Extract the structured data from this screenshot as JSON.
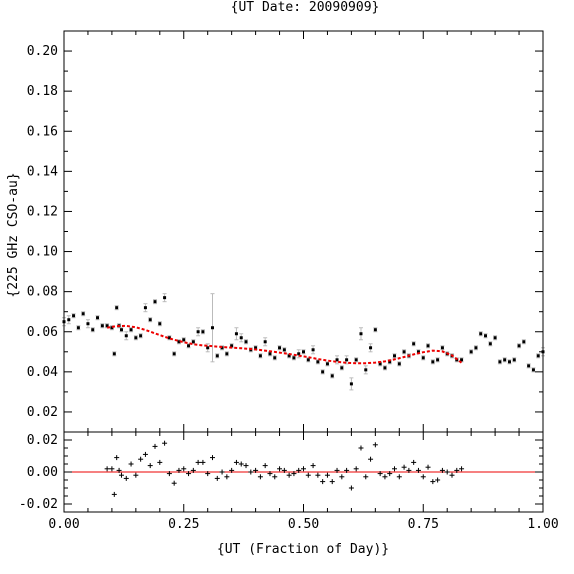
{
  "chart_data": [
    {
      "type": "scatter",
      "title": "{UT Date: 20090909}",
      "ylabel": "{225 GHz CSO-au}",
      "xlim": [
        0.0,
        1.0
      ],
      "ylim": [
        0.01,
        0.21
      ],
      "yticks": [
        "0.02",
        "0.04",
        "0.06",
        "0.08",
        "0.10",
        "0.12",
        "0.14",
        "0.16",
        "0.18",
        "0.20"
      ],
      "grid": false,
      "colors": {
        "points": "#000000",
        "errorbars": "#bbbbbb",
        "fit": "#ee0000"
      },
      "series": [
        {
          "kind": "points-with-errorbars",
          "x": [
            0.0,
            0.01,
            0.02,
            0.03,
            0.04,
            0.05,
            0.06,
            0.07,
            0.08,
            0.09,
            0.1,
            0.105,
            0.11,
            0.115,
            0.12,
            0.13,
            0.14,
            0.15,
            0.16,
            0.17,
            0.18,
            0.19,
            0.2,
            0.21,
            0.22,
            0.23,
            0.24,
            0.25,
            0.26,
            0.27,
            0.28,
            0.29,
            0.3,
            0.31,
            0.32,
            0.33,
            0.34,
            0.35,
            0.36,
            0.37,
            0.38,
            0.39,
            0.4,
            0.41,
            0.42,
            0.43,
            0.44,
            0.45,
            0.46,
            0.47,
            0.48,
            0.49,
            0.5,
            0.51,
            0.52,
            0.53,
            0.54,
            0.55,
            0.56,
            0.57,
            0.58,
            0.59,
            0.6,
            0.61,
            0.62,
            0.63,
            0.64,
            0.65,
            0.66,
            0.67,
            0.68,
            0.69,
            0.7,
            0.71,
            0.72,
            0.73,
            0.74,
            0.75,
            0.76,
            0.77,
            0.78,
            0.79,
            0.8,
            0.81,
            0.82,
            0.83,
            0.85,
            0.86,
            0.87,
            0.88,
            0.89,
            0.9,
            0.91,
            0.92,
            0.93,
            0.94,
            0.95,
            0.96,
            0.97,
            0.98,
            0.99,
            1.0
          ],
          "y": [
            0.065,
            0.066,
            0.068,
            0.062,
            0.069,
            0.064,
            0.061,
            0.067,
            0.063,
            0.063,
            0.062,
            0.049,
            0.072,
            0.063,
            0.061,
            0.058,
            0.061,
            0.057,
            0.058,
            0.072,
            0.066,
            0.075,
            0.064,
            0.077,
            0.057,
            0.049,
            0.055,
            0.056,
            0.053,
            0.055,
            0.06,
            0.06,
            0.052,
            0.062,
            0.048,
            0.052,
            0.049,
            0.053,
            0.059,
            0.057,
            0.055,
            0.051,
            0.052,
            0.048,
            0.055,
            0.049,
            0.047,
            0.052,
            0.051,
            0.048,
            0.047,
            0.049,
            0.05,
            0.046,
            0.051,
            0.045,
            0.04,
            0.044,
            0.038,
            0.046,
            0.042,
            0.046,
            0.034,
            0.046,
            0.059,
            0.041,
            0.052,
            0.061,
            0.044,
            0.042,
            0.045,
            0.048,
            0.044,
            0.05,
            0.048,
            0.054,
            0.05,
            0.047,
            0.053,
            0.045,
            0.046,
            0.052,
            0.049,
            0.048,
            0.046,
            0.046,
            0.05,
            0.052,
            0.059,
            0.058,
            0.054,
            0.057,
            0.045,
            0.046,
            0.045,
            0.046,
            0.053,
            0.055,
            0.043,
            0.041,
            0.048,
            0.05
          ],
          "yerr": [
            0.002,
            0.002,
            0.001,
            0.001,
            0.001,
            0.002,
            0.001,
            0.001,
            0.001,
            0.001,
            0.001,
            0.001,
            0.001,
            0.001,
            0.001,
            0.002,
            0.001,
            0.001,
            0.001,
            0.002,
            0.001,
            0.001,
            0.001,
            0.002,
            0.001,
            0.001,
            0.001,
            0.001,
            0.001,
            0.001,
            0.002,
            0.001,
            0.002,
            0.017,
            0.001,
            0.001,
            0.001,
            0.001,
            0.003,
            0.002,
            0.001,
            0.001,
            0.001,
            0.001,
            0.002,
            0.001,
            0.001,
            0.001,
            0.001,
            0.001,
            0.001,
            0.002,
            0.001,
            0.001,
            0.002,
            0.001,
            0.001,
            0.001,
            0.001,
            0.002,
            0.001,
            0.002,
            0.003,
            0.001,
            0.003,
            0.002,
            0.002,
            0.001,
            0.001,
            0.001,
            0.001,
            0.001,
            0.001,
            0.001,
            0.001,
            0.001,
            0.001,
            0.001,
            0.001,
            0.001,
            0.001,
            0.001,
            0.001,
            0.001,
            0.001,
            0.001,
            0.001,
            0.001,
            0.001,
            0.001,
            0.001,
            0.001,
            0.001,
            0.001,
            0.001,
            0.001,
            0.001,
            0.001,
            0.001,
            0.001,
            0.001,
            0.002
          ]
        },
        {
          "kind": "fit-curve",
          "x": [
            0.09,
            0.11,
            0.13,
            0.15,
            0.17,
            0.19,
            0.21,
            0.23,
            0.25,
            0.27,
            0.29,
            0.31,
            0.33,
            0.35,
            0.37,
            0.39,
            0.41,
            0.43,
            0.45,
            0.47,
            0.49,
            0.51,
            0.53,
            0.55,
            0.57,
            0.59,
            0.61,
            0.63,
            0.65,
            0.67,
            0.69,
            0.71,
            0.73,
            0.75,
            0.77,
            0.79,
            0.81,
            0.83
          ],
          "y": [
            0.062,
            0.0628,
            0.0629,
            0.0622,
            0.0609,
            0.0592,
            0.0575,
            0.056,
            0.0548,
            0.0538,
            0.0532,
            0.0528,
            0.0524,
            0.0521,
            0.0518,
            0.0514,
            0.0509,
            0.0503,
            0.0496,
            0.0489,
            0.0481,
            0.0473,
            0.0464,
            0.0456,
            0.045,
            0.0445,
            0.0443,
            0.0443,
            0.0446,
            0.0452,
            0.0462,
            0.0474,
            0.0487,
            0.0498,
            0.0506,
            0.0502,
            0.0482,
            0.0445
          ]
        }
      ]
    },
    {
      "type": "scatter",
      "xlabel": "{UT (Fraction of Day)}",
      "xlim": [
        0.0,
        1.0
      ],
      "ylim": [
        -0.025,
        0.025
      ],
      "xticks": [
        "0.00",
        "0.25",
        "0.50",
        "0.75",
        "1.00"
      ],
      "yticks": [
        "-0.02",
        "0.00",
        "0.02"
      ],
      "grid": false,
      "reference_line": 0.0,
      "series": [
        {
          "kind": "residuals",
          "x": [
            0.09,
            0.1,
            0.105,
            0.11,
            0.115,
            0.12,
            0.13,
            0.14,
            0.15,
            0.16,
            0.17,
            0.18,
            0.19,
            0.2,
            0.21,
            0.22,
            0.23,
            0.24,
            0.25,
            0.26,
            0.27,
            0.28,
            0.29,
            0.3,
            0.31,
            0.32,
            0.33,
            0.34,
            0.35,
            0.36,
            0.37,
            0.38,
            0.39,
            0.4,
            0.41,
            0.42,
            0.43,
            0.44,
            0.45,
            0.46,
            0.47,
            0.48,
            0.49,
            0.5,
            0.51,
            0.52,
            0.53,
            0.54,
            0.55,
            0.56,
            0.57,
            0.58,
            0.59,
            0.6,
            0.61,
            0.62,
            0.63,
            0.64,
            0.65,
            0.66,
            0.67,
            0.68,
            0.69,
            0.7,
            0.71,
            0.72,
            0.73,
            0.74,
            0.75,
            0.76,
            0.77,
            0.78,
            0.79,
            0.8,
            0.81,
            0.82,
            0.83
          ],
          "y": [
            0.002,
            0.002,
            -0.014,
            0.009,
            0.001,
            -0.002,
            -0.004,
            0.005,
            -0.002,
            0.008,
            0.011,
            0.004,
            0.016,
            0.006,
            0.018,
            -0.001,
            -0.007,
            0.001,
            0.002,
            -0.001,
            0.001,
            0.006,
            0.006,
            -0.001,
            0.009,
            -0.004,
            0.0,
            -0.003,
            0.001,
            0.006,
            0.005,
            0.004,
            0.0,
            0.001,
            -0.003,
            0.004,
            -0.001,
            -0.003,
            0.002,
            0.001,
            -0.002,
            -0.001,
            0.001,
            0.002,
            -0.002,
            0.004,
            -0.002,
            -0.006,
            -0.002,
            -0.006,
            0.001,
            -0.003,
            0.001,
            -0.01,
            0.002,
            0.015,
            -0.003,
            0.008,
            0.017,
            -0.001,
            -0.003,
            -0.001,
            0.002,
            -0.003,
            0.003,
            0.001,
            0.006,
            0.001,
            -0.003,
            0.003,
            -0.006,
            -0.005,
            0.001,
            0.0,
            -0.002,
            0.001,
            0.002
          ]
        }
      ]
    }
  ]
}
